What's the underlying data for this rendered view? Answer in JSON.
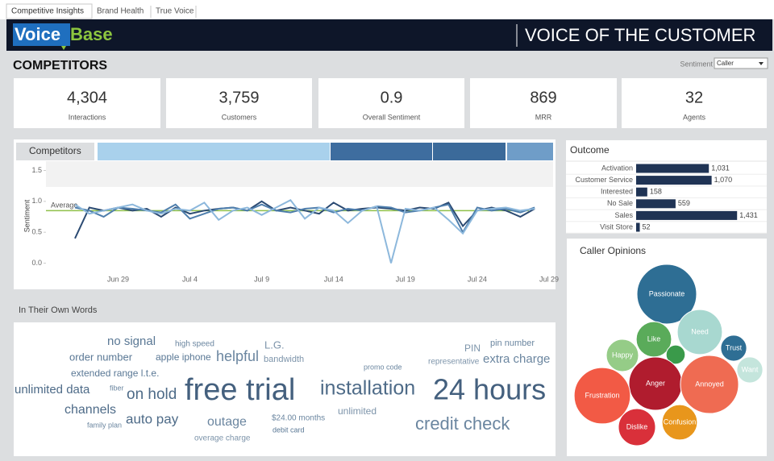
{
  "tabs": [
    "Competitive Insights",
    "Brand Health",
    "True Voice"
  ],
  "header": {
    "logo_voice": "Voice",
    "logo_base": "Base",
    "title": "VOICE OF THE CUSTOMER"
  },
  "page_title": "COMPETITORS",
  "sentiment_filter": {
    "label": "Sentiment",
    "value": "Caller"
  },
  "kpis": [
    {
      "value": "4,304",
      "label": "Interactions"
    },
    {
      "value": "3,759",
      "label": "Customers"
    },
    {
      "value": "0.9",
      "label": "Overall Sentiment"
    },
    {
      "value": "869",
      "label": "MRR"
    },
    {
      "value": "32",
      "label": "Agents"
    }
  ],
  "word_cloud": {
    "title": "In Their Own Words",
    "words": [
      "no signal",
      "high speed",
      "L.G.",
      "PIN",
      "pin number",
      "order number",
      "apple iphone",
      "helpful",
      "bandwidth",
      "promo code",
      "representative",
      "extra charge",
      "extended range l.t.e.",
      "unlimited data",
      "fiber",
      "on hold",
      "free trial",
      "installation",
      "24 hours",
      "channels",
      "unlimited",
      "auto pay",
      "outage",
      "$24.00 months",
      "credit check",
      "family plan",
      "debit card",
      "overage charge"
    ]
  },
  "chart_data": [
    {
      "type": "line",
      "title": "Competitors",
      "y_label": "Sentiment",
      "categories": [
        null,
        null,
        null,
        "Jun 29",
        null,
        null,
        null,
        null,
        "Jul 4",
        null,
        null,
        null,
        null,
        "Jul 9",
        null,
        null,
        null,
        null,
        "Jul 14",
        null,
        null,
        null,
        null,
        "Jul 19",
        null,
        null,
        null,
        null,
        "Jul 24",
        null,
        null,
        null,
        null,
        "Jul 29"
      ],
      "series": [
        {
          "color": "#2b4a72",
          "values": [
            0.4,
            0.9,
            0.85,
            0.9,
            0.85,
            0.88,
            0.75,
            0.9,
            0.8,
            0.85,
            0.88,
            0.9,
            0.85,
            1.0,
            0.85,
            0.9,
            0.85,
            0.8,
            0.98,
            0.85,
            0.88,
            0.9,
            0.88,
            0.85,
            0.9,
            0.88,
            0.98,
            0.6,
            0.85,
            0.9,
            0.85,
            0.75,
            0.88,
            null
          ]
        },
        {
          "color": "#4f7fad",
          "values": [
            0.9,
            0.85,
            0.75,
            0.9,
            0.88,
            0.85,
            0.82,
            0.95,
            0.72,
            0.8,
            0.88,
            0.9,
            0.85,
            0.95,
            0.85,
            0.82,
            0.88,
            0.9,
            0.82,
            0.88,
            0.85,
            0.92,
            0.9,
            0.82,
            0.85,
            0.9,
            0.95,
            0.5,
            0.9,
            0.85,
            0.88,
            0.82,
            0.9,
            null
          ]
        },
        {
          "color": "#8db8dc",
          "values": [
            0.95,
            0.8,
            0.85,
            0.9,
            0.95,
            0.85,
            0.8,
            0.88,
            0.85,
            0.98,
            0.7,
            0.85,
            0.9,
            0.78,
            0.9,
            1.02,
            0.72,
            0.9,
            0.85,
            0.65,
            0.85,
            0.92,
            0.0,
            0.88,
            0.85,
            0.9,
            0.7,
            0.48,
            0.85,
            0.88,
            0.9,
            0.85,
            0.88,
            null
          ]
        }
      ],
      "reference_line": {
        "label": "Average",
        "value": 0.85,
        "color": "#8fc04a"
      },
      "ylim": [
        -0.15,
        1.65
      ],
      "yticks": [
        {
          "value": 0,
          "label": "0.0"
        },
        0.5,
        {
          "value": 1,
          "label": "1.0"
        },
        1.5
      ]
    },
    {
      "type": "hbar",
      "title": "Outcome",
      "categories": [
        "Activation",
        "Customer Service",
        "Interested",
        "No Sale",
        "Sales",
        "Visit Store"
      ],
      "values": [
        1031,
        1070,
        158,
        559,
        1431,
        52
      ],
      "value_labels": [
        "1,031",
        "1,070",
        "158",
        "559",
        "1,431",
        "52"
      ],
      "color": "#1f3354",
      "xlim": [
        0,
        1600
      ]
    },
    {
      "type": "bubble",
      "title": "Caller Opinions",
      "categories": [
        "Passionate",
        "Need",
        "Like",
        "Trust",
        "Happy",
        "Want",
        null,
        "Anger",
        "Annoyed",
        "Frustration",
        "Dislike",
        "Confusion"
      ],
      "values": [
        137,
        78,
        48,
        26,
        40,
        26,
        14,
        109,
        130,
        122,
        53,
        48
      ],
      "colors": [
        "#2e6e94",
        "#a8d8d0",
        "#5aab5a",
        "#2e6e94",
        "#95cc87",
        "#c4e5dc",
        "#3a9a4a",
        "#b01c2e",
        "#ef6b52",
        "#f25a45",
        "#d9303a",
        "#e8961c"
      ]
    }
  ]
}
